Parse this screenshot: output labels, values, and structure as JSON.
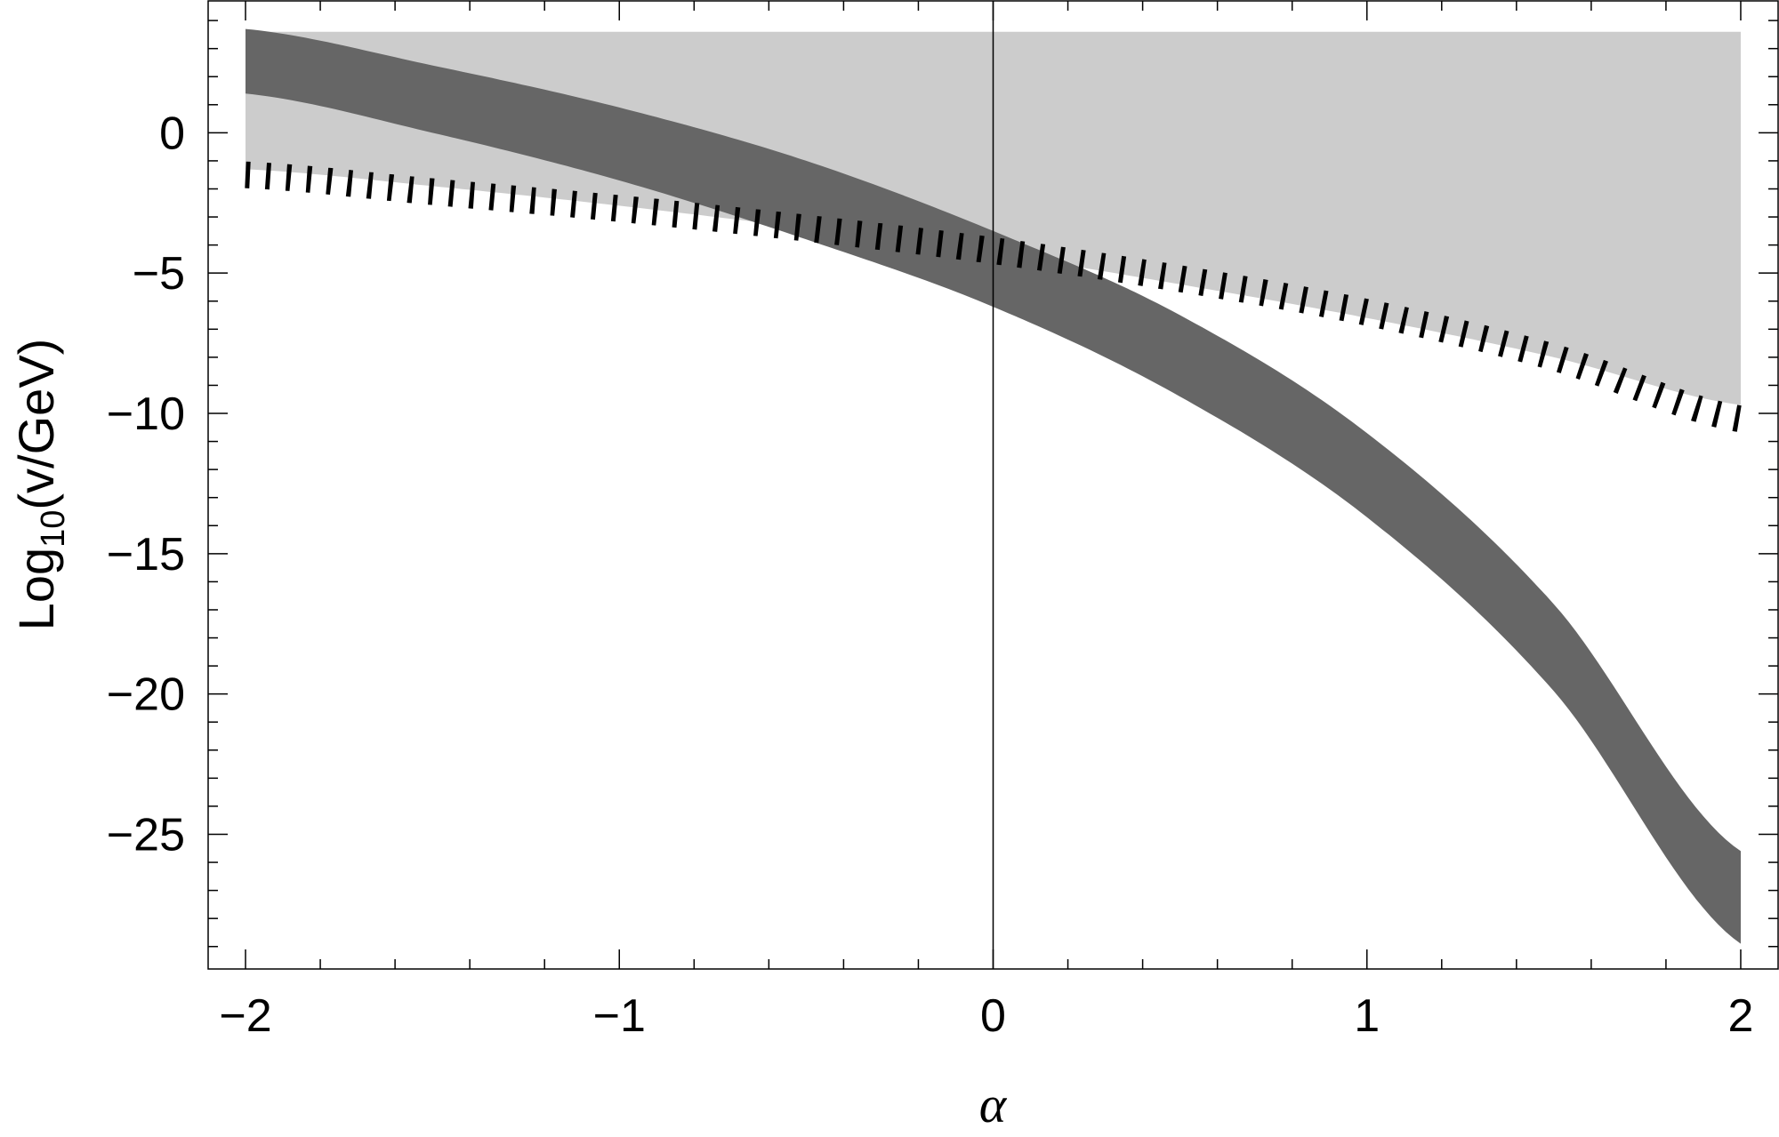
{
  "chart_data": {
    "type": "area",
    "xlabel": "α",
    "ylabel_main": "Log",
    "ylabel_sub": "10",
    "ylabel_rest": "(v/GeV)",
    "xlim": [
      -2.1,
      2.1
    ],
    "ylim": [
      -29.8,
      4.7
    ],
    "x_ticks": [
      -2,
      -1,
      0,
      1,
      2
    ],
    "x_tick_labels": [
      "−2",
      "−1",
      "0",
      "1",
      "2"
    ],
    "y_ticks": [
      0,
      -5,
      -10,
      -15,
      -20,
      -25
    ],
    "y_tick_labels": [
      "0",
      "−5",
      "−10",
      "−15",
      "−20",
      "−25"
    ],
    "grid": false,
    "colors": {
      "allowed_region": "#cccccc",
      "band": "#666666",
      "dashed_line": "#000000",
      "zero_line": "#000000"
    },
    "series": [
      {
        "kind": "shaded-region",
        "top": 3.6,
        "x": [
          -2,
          -1.5,
          -1,
          -0.5,
          0,
          0.5,
          1,
          1.5,
          2
        ],
        "bottom": [
          -1.3,
          -1.9,
          -2.6,
          -3.4,
          -4.3,
          -5.4,
          -6.6,
          -8.0,
          -9.7
        ]
      },
      {
        "kind": "band",
        "x": [
          -2,
          -1.5,
          -1,
          -0.5,
          0,
          0.5,
          1,
          1.5,
          2
        ],
        "upper": [
          3.7,
          2.4,
          0.9,
          -1.0,
          -3.5,
          -6.5,
          -10.7,
          -16.8,
          -25.6
        ],
        "lower": [
          1.4,
          0.0,
          -1.7,
          -3.8,
          -6.2,
          -9.4,
          -13.7,
          -19.9,
          -28.9
        ]
      },
      {
        "kind": "dashed-line",
        "x": [
          -2,
          -1.5,
          -1,
          -0.5,
          0,
          0.5,
          1,
          1.5,
          2
        ],
        "y": [
          -1.5,
          -2.1,
          -2.7,
          -3.4,
          -4.2,
          -5.2,
          -6.4,
          -8.0,
          -10.2
        ]
      }
    ]
  }
}
